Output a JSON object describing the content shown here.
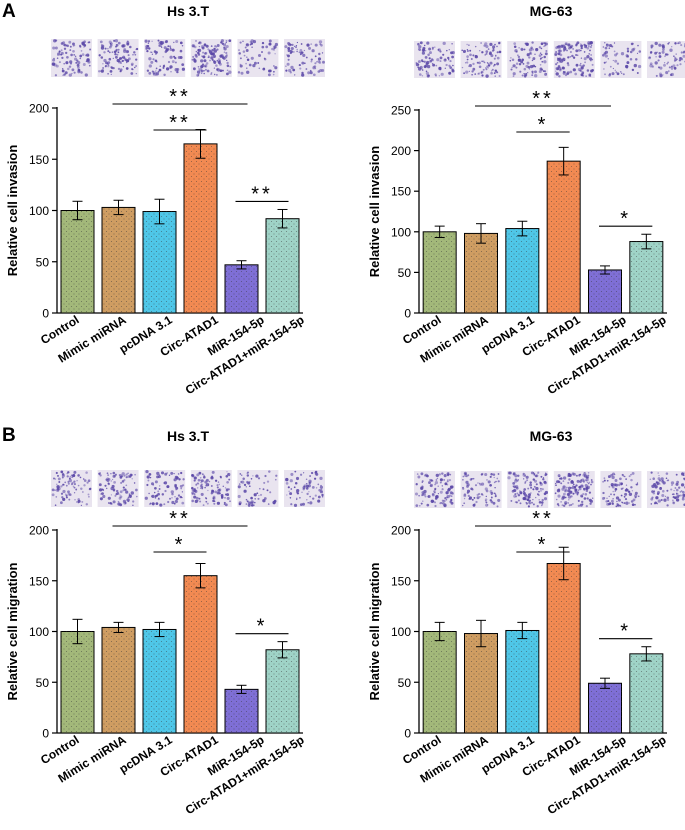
{
  "figure": {
    "panel_labels": [
      "A",
      "B"
    ]
  },
  "categories": [
    "Control",
    "Mimic miRNA",
    "pcDNA 3.1",
    "Circ-ATAD1",
    "MiR-154-5p",
    "Circ-ATAD1+miR-154-5p"
  ],
  "colors": {
    "bars": [
      "#a3b87a",
      "#cf9d62",
      "#4fc7e8",
      "#f28a52",
      "#7f6fd6",
      "#9fd3c7"
    ],
    "image_bg": "#e9e4ef",
    "image_dots": "#5b48a8"
  },
  "chart_data": [
    {
      "type": "bar",
      "panel": "A",
      "title": "Hs 3.T",
      "ylabel": "Relative cell invasion",
      "ylim": [
        0,
        200
      ],
      "yticks": [
        0,
        50,
        100,
        150,
        200
      ],
      "categories": [
        "Control",
        "Mimic miRNA",
        "pcDNA 3.1",
        "Circ-ATAD1",
        "MiR-154-5p",
        "Circ-ATAD1+miR-154-5p"
      ],
      "values": [
        100,
        103,
        99,
        165,
        47,
        92
      ],
      "errors": [
        9,
        7,
        12,
        14,
        4,
        9
      ],
      "image_density": [
        0.6,
        0.7,
        0.55,
        0.95,
        0.3,
        0.45
      ],
      "significance": [
        {
          "from": 1,
          "to": 4,
          "label": "**"
        },
        {
          "from": 2,
          "to": 3,
          "label": "**"
        },
        {
          "from": 4,
          "to": 5,
          "label": "**"
        }
      ]
    },
    {
      "type": "bar",
      "panel": "",
      "title": "MG-63",
      "ylabel": "Relative cell invasion",
      "ylim": [
        0,
        250
      ],
      "yticks": [
        0,
        50,
        100,
        150,
        200,
        250
      ],
      "categories": [
        "Control",
        "Mimic miRNA",
        "pcDNA 3.1",
        "Circ-ATAD1",
        "MiR-154-5p",
        "Circ-ATAD1+miR-154-5p"
      ],
      "values": [
        100,
        98,
        104,
        187,
        53,
        88
      ],
      "errors": [
        7,
        12,
        9,
        17,
        5,
        9
      ],
      "image_density": [
        0.55,
        0.6,
        0.6,
        0.9,
        0.3,
        0.45
      ],
      "significance": [
        {
          "from": 1,
          "to": 4,
          "label": "**"
        },
        {
          "from": 2,
          "to": 3,
          "label": "*"
        },
        {
          "from": 4,
          "to": 5,
          "label": "*"
        }
      ]
    },
    {
      "type": "bar",
      "panel": "B",
      "title": "Hs 3.T",
      "ylabel": "Relative cell migration",
      "ylim": [
        0,
        200
      ],
      "yticks": [
        0,
        50,
        100,
        150,
        200
      ],
      "categories": [
        "Control",
        "Mimic miRNA",
        "pcDNA 3.1",
        "Circ-ATAD1",
        "MiR-154-5p",
        "Circ-ATAD1+miR-154-5p"
      ],
      "values": [
        100,
        104,
        102,
        155,
        43,
        82
      ],
      "errors": [
        12,
        5,
        7,
        12,
        4,
        8
      ],
      "image_density": [
        0.55,
        0.6,
        0.5,
        0.8,
        0.3,
        0.4
      ],
      "significance": [
        {
          "from": 1,
          "to": 4,
          "label": "**"
        },
        {
          "from": 2,
          "to": 3,
          "label": "*"
        },
        {
          "from": 4,
          "to": 5,
          "label": "*"
        }
      ]
    },
    {
      "type": "bar",
      "panel": "",
      "title": "MG-63",
      "ylabel": "Relative cell migration",
      "ylim": [
        0,
        200
      ],
      "yticks": [
        0,
        50,
        100,
        150,
        200
      ],
      "categories": [
        "Control",
        "Mimic miRNA",
        "pcDNA 3.1",
        "Circ-ATAD1",
        "MiR-154-5p",
        "Circ-ATAD1+miR-154-5p"
      ],
      "values": [
        100,
        98,
        101,
        167,
        49,
        78
      ],
      "errors": [
        9,
        13,
        8,
        16,
        5,
        7
      ],
      "image_density": [
        0.7,
        0.55,
        0.75,
        0.95,
        0.6,
        0.6
      ],
      "significance": [
        {
          "from": 1,
          "to": 4,
          "label": "**"
        },
        {
          "from": 2,
          "to": 3,
          "label": "*"
        },
        {
          "from": 4,
          "to": 5,
          "label": "*"
        }
      ]
    }
  ]
}
